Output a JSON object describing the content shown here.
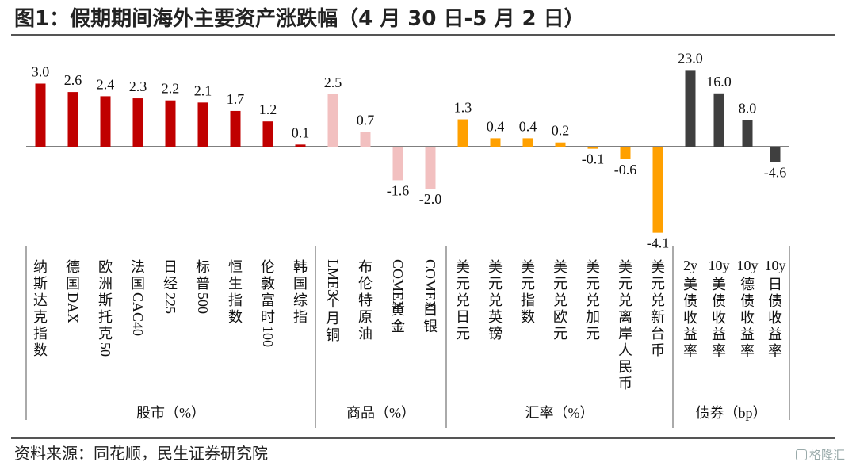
{
  "title": "图1：假期期间海外主要资产涨跌幅（4 月 30 日-5 月 2 日）",
  "source": "资料来源：同花顺，民生证券研究院",
  "watermark": "格隆汇",
  "chart_data": {
    "type": "bar",
    "title": "",
    "colors": {
      "股市": "#c00000",
      "商品": "#f2c0c0",
      "汇率": "#ffa000",
      "债券": "#3f3f3f"
    },
    "groups": [
      {
        "name": "股市（%）",
        "key": "股市",
        "items": [
          {
            "label": "纳斯达克指数",
            "value": 3.0
          },
          {
            "label": "德国DAX",
            "value": 2.6
          },
          {
            "label": "欧洲斯托克50",
            "value": 2.4
          },
          {
            "label": "法国CAC40",
            "value": 2.3
          },
          {
            "label": "日经225",
            "value": 2.2
          },
          {
            "label": "标普500",
            "value": 2.1
          },
          {
            "label": "恒生指数",
            "value": 1.7
          },
          {
            "label": "伦敦富时100",
            "value": 1.2
          },
          {
            "label": "韩国综指",
            "value": 0.1
          }
        ]
      },
      {
        "name": "商品（%）",
        "key": "商品",
        "items": [
          {
            "label": "LME3个月铜",
            "value": 2.5
          },
          {
            "label": "布伦特原油",
            "value": 0.7
          },
          {
            "label": "COMEX黄金",
            "value": -1.6
          },
          {
            "label": "COMEX白银",
            "value": -2.0
          }
        ]
      },
      {
        "name": "汇率（%）",
        "key": "汇率",
        "items": [
          {
            "label": "美元兑日元",
            "value": 1.3
          },
          {
            "label": "美元兑英镑",
            "value": 0.4
          },
          {
            "label": "美元指数",
            "value": 0.4
          },
          {
            "label": "美元兑欧元",
            "value": 0.2
          },
          {
            "label": "美元兑加元",
            "value": -0.1
          },
          {
            "label": "美元兑离岸人民币",
            "value": -0.6
          },
          {
            "label": "美元兑新台币",
            "value": -4.1
          }
        ]
      },
      {
        "name": "债券（bp）",
        "key": "债券",
        "items": [
          {
            "label": "2y美债收益率",
            "value": 23.0
          },
          {
            "label": "10y美债收益率",
            "value": 16.0
          },
          {
            "label": "10y德债收益率",
            "value": 8.0
          },
          {
            "label": "10y日债收益率",
            "value": -4.6
          }
        ]
      }
    ]
  }
}
